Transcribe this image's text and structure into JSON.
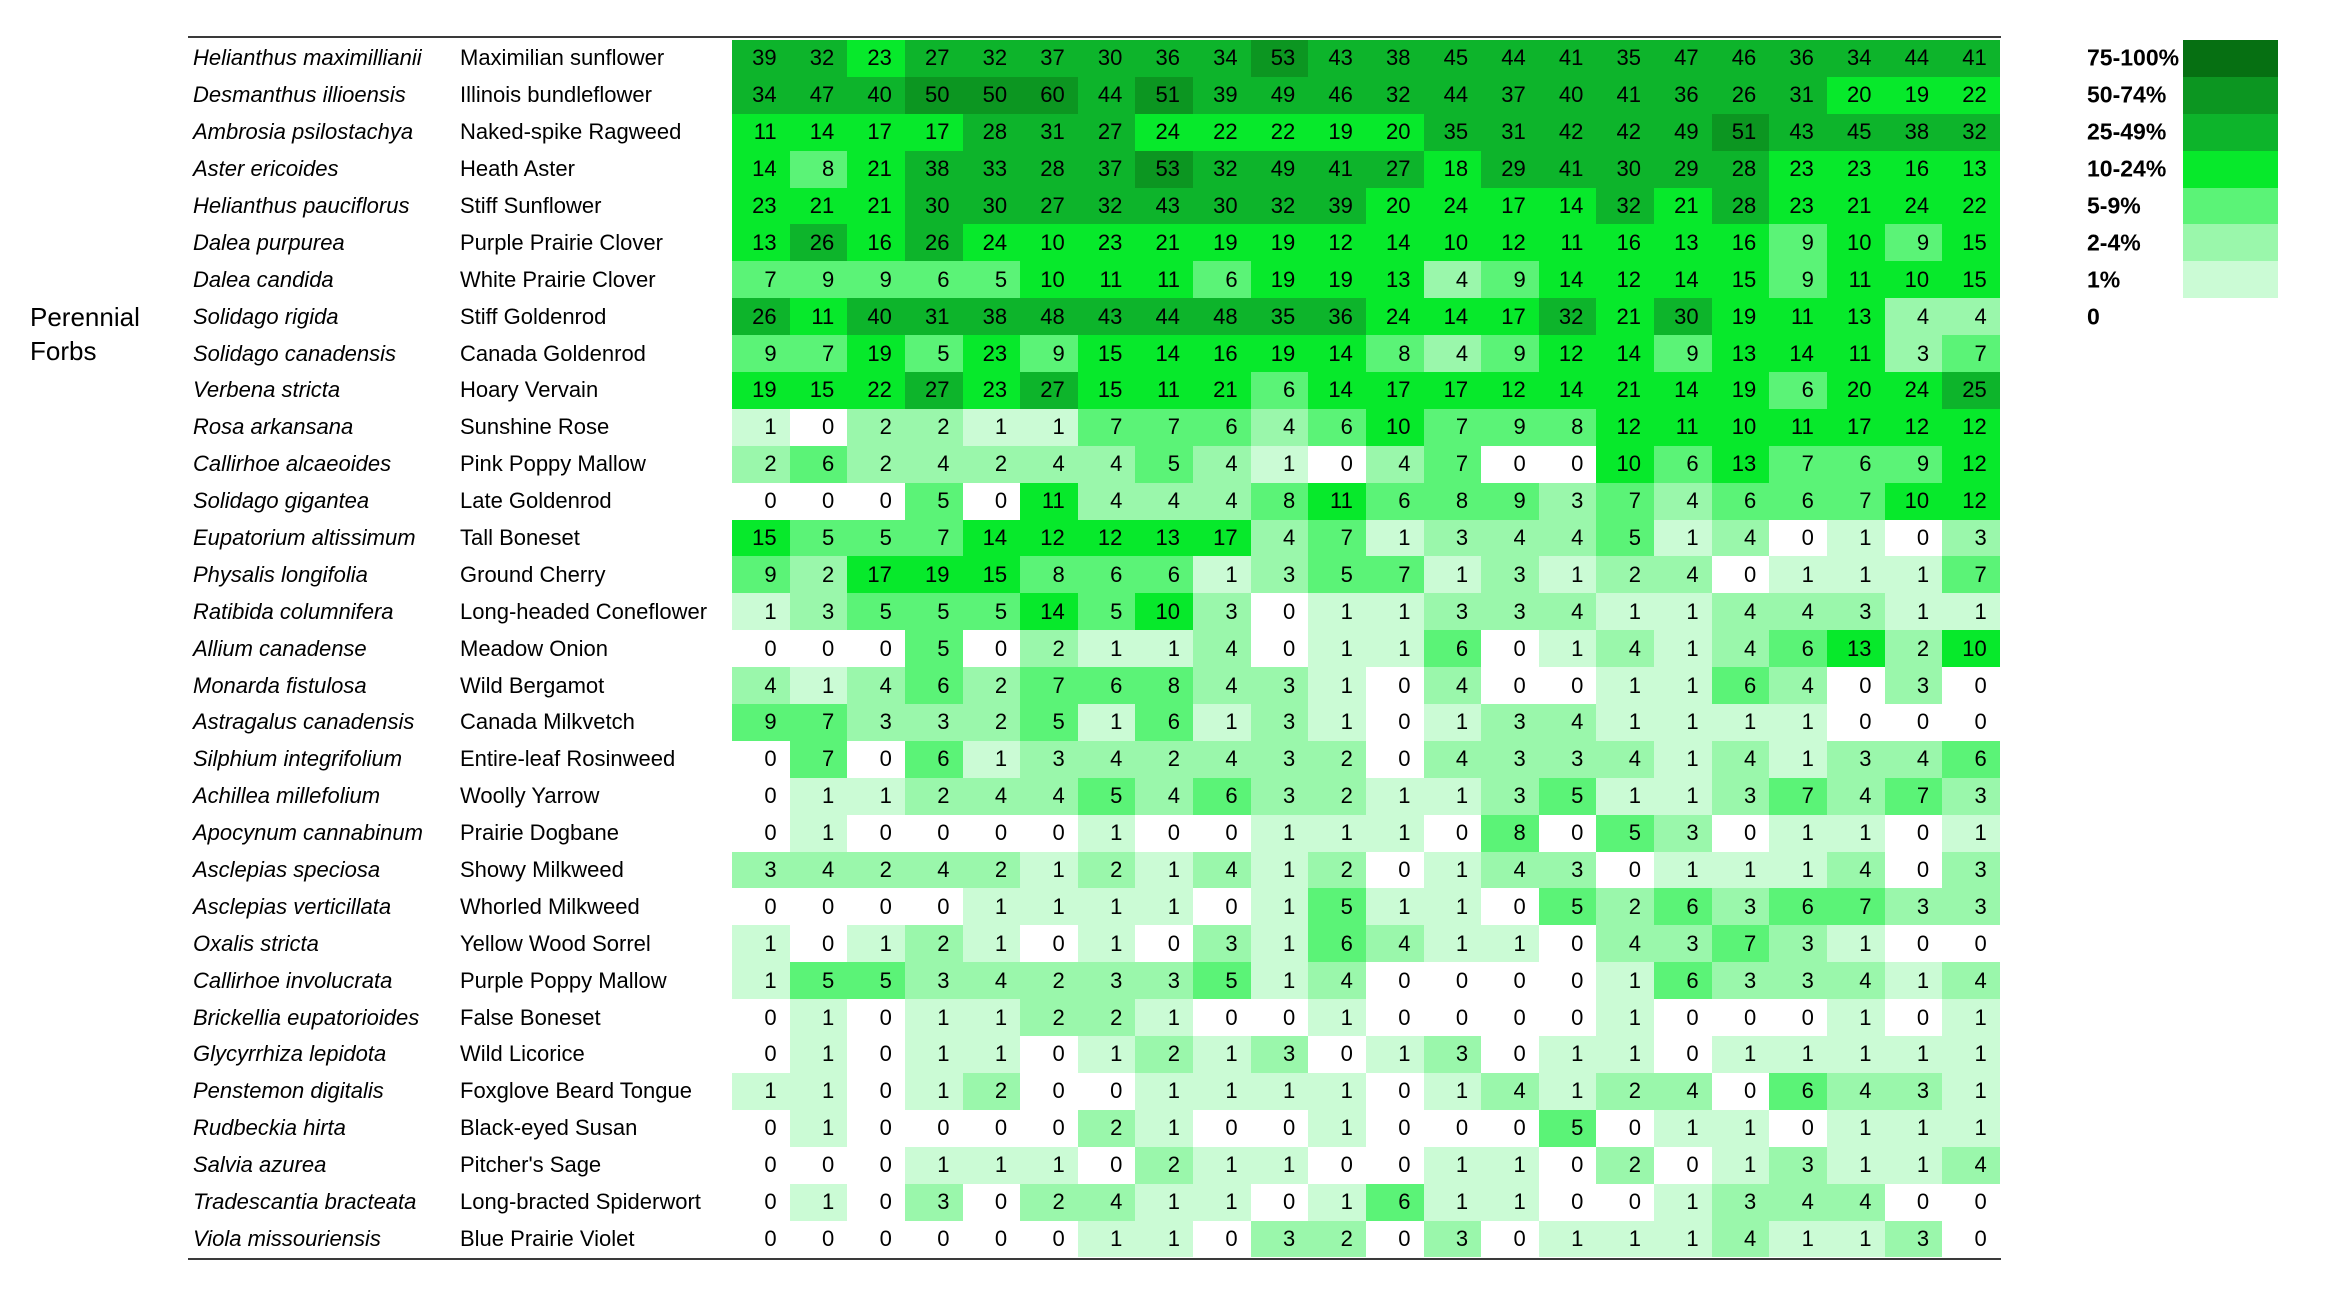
{
  "group_label": {
    "line1": "Perennial",
    "line2": "Forbs"
  },
  "chart_data": {
    "type": "heatmap",
    "group_label": "Perennial Forbs",
    "n_columns": 22,
    "legend_position": "top-right",
    "text_color": "#000000",
    "value_bins": [
      {
        "label": "75-100%",
        "min": 75,
        "color": "#067012"
      },
      {
        "label": "50-74%",
        "min": 50,
        "color": "#0C9621"
      },
      {
        "label": "25-49%",
        "min": 25,
        "color": "#0DB42B"
      },
      {
        "label": "10-24%",
        "min": 10,
        "color": "#07E92B"
      },
      {
        "label": "5-9%",
        "min": 5,
        "color": "#5BF377"
      },
      {
        "label": "2-4%",
        "min": 2,
        "color": "#9AF7AB"
      },
      {
        "label": "1%",
        "min": 1,
        "color": "#CBFBD5"
      },
      {
        "label": "0",
        "min": 0,
        "color": "#FFFFFF"
      }
    ],
    "rows": [
      {
        "scientific": "Helianthus maximillianii",
        "common": "Maximilian sunflower",
        "values": [
          39,
          32,
          23,
          27,
          32,
          37,
          30,
          36,
          34,
          53,
          43,
          38,
          45,
          44,
          41,
          35,
          47,
          46,
          36,
          34,
          44,
          41
        ]
      },
      {
        "scientific": "Desmanthus illioensis",
        "common": "Illinois bundleflower",
        "values": [
          34,
          47,
          40,
          50,
          50,
          60,
          44,
          51,
          39,
          49,
          46,
          32,
          44,
          37,
          40,
          41,
          36,
          26,
          31,
          20,
          19,
          22
        ]
      },
      {
        "scientific": "Ambrosia psilostachya",
        "common": "Naked-spike Ragweed",
        "values": [
          11,
          14,
          17,
          17,
          28,
          31,
          27,
          24,
          22,
          22,
          19,
          20,
          35,
          31,
          42,
          42,
          49,
          51,
          43,
          45,
          38,
          32
        ]
      },
      {
        "scientific": "Aster ericoides",
        "common": "Heath Aster",
        "values": [
          14,
          8,
          21,
          38,
          33,
          28,
          37,
          53,
          32,
          49,
          41,
          27,
          18,
          29,
          41,
          30,
          29,
          28,
          23,
          23,
          16,
          13
        ]
      },
      {
        "scientific": "Helianthus pauciflorus",
        "common": "Stiff Sunflower",
        "values": [
          23,
          21,
          21,
          30,
          30,
          27,
          32,
          43,
          30,
          32,
          39,
          20,
          24,
          17,
          14,
          32,
          21,
          28,
          23,
          21,
          24,
          22
        ]
      },
      {
        "scientific": "Dalea purpurea",
        "common": "Purple Prairie Clover",
        "values": [
          13,
          26,
          16,
          26,
          24,
          10,
          23,
          21,
          19,
          19,
          12,
          14,
          10,
          12,
          11,
          16,
          13,
          16,
          9,
          10,
          9,
          15
        ]
      },
      {
        "scientific": "Dalea candida",
        "common": "White Prairie Clover",
        "values": [
          7,
          9,
          9,
          6,
          5,
          10,
          11,
          11,
          6,
          19,
          19,
          13,
          4,
          9,
          14,
          12,
          14,
          15,
          9,
          11,
          10,
          15
        ]
      },
      {
        "scientific": "Solidago rigida",
        "common": "Stiff Goldenrod",
        "values": [
          26,
          11,
          40,
          31,
          38,
          48,
          43,
          44,
          48,
          35,
          36,
          24,
          14,
          17,
          32,
          21,
          30,
          19,
          11,
          13,
          4,
          4
        ]
      },
      {
        "scientific": "Solidago canadensis",
        "common": "Canada Goldenrod",
        "values": [
          9,
          7,
          19,
          5,
          23,
          9,
          15,
          14,
          16,
          19,
          14,
          8,
          4,
          9,
          12,
          14,
          9,
          13,
          14,
          11,
          3,
          7
        ]
      },
      {
        "scientific": "Verbena stricta",
        "common": "Hoary Vervain",
        "values": [
          19,
          15,
          22,
          27,
          23,
          27,
          15,
          11,
          21,
          6,
          14,
          17,
          17,
          12,
          14,
          21,
          14,
          19,
          6,
          20,
          24,
          25
        ]
      },
      {
        "scientific": "Rosa arkansana",
        "common": "Sunshine Rose",
        "values": [
          1,
          0,
          2,
          2,
          1,
          1,
          7,
          7,
          6,
          4,
          6,
          10,
          7,
          9,
          8,
          12,
          11,
          10,
          11,
          17,
          12,
          12
        ]
      },
      {
        "scientific": "Callirhoe alcaeoides",
        "common": "Pink Poppy Mallow",
        "values": [
          2,
          6,
          2,
          4,
          2,
          4,
          4,
          5,
          4,
          1,
          0,
          4,
          7,
          0,
          0,
          10,
          6,
          13,
          7,
          6,
          9,
          12
        ]
      },
      {
        "scientific": "Solidago gigantea",
        "common": "Late Goldenrod",
        "values": [
          0,
          0,
          0,
          5,
          0,
          11,
          4,
          4,
          4,
          8,
          11,
          6,
          8,
          9,
          3,
          7,
          4,
          6,
          6,
          7,
          10,
          12
        ]
      },
      {
        "scientific": "Eupatorium altissimum",
        "common": "Tall Boneset",
        "values": [
          15,
          5,
          5,
          7,
          14,
          12,
          12,
          13,
          17,
          4,
          7,
          1,
          3,
          4,
          4,
          5,
          1,
          4,
          0,
          1,
          0,
          3
        ]
      },
      {
        "scientific": "Physalis longifolia",
        "common": "Ground Cherry",
        "values": [
          9,
          2,
          17,
          19,
          15,
          8,
          6,
          6,
          1,
          3,
          5,
          7,
          1,
          3,
          1,
          2,
          4,
          0,
          1,
          1,
          1,
          7
        ]
      },
      {
        "scientific": "Ratibida columnifera",
        "common": "Long-headed Coneflower",
        "values": [
          1,
          3,
          5,
          5,
          5,
          14,
          5,
          10,
          3,
          0,
          1,
          1,
          3,
          3,
          4,
          1,
          1,
          4,
          4,
          3,
          1,
          1
        ]
      },
      {
        "scientific": "Allium canadense",
        "common": "Meadow Onion",
        "values": [
          0,
          0,
          0,
          5,
          0,
          2,
          1,
          1,
          4,
          0,
          1,
          1,
          6,
          0,
          1,
          4,
          1,
          4,
          6,
          13,
          2,
          10
        ]
      },
      {
        "scientific": "Monarda fistulosa",
        "common": "Wild Bergamot",
        "values": [
          4,
          1,
          4,
          6,
          2,
          7,
          6,
          8,
          4,
          3,
          1,
          0,
          4,
          0,
          0,
          1,
          1,
          6,
          4,
          0,
          3,
          0
        ]
      },
      {
        "scientific": "Astragalus canadensis",
        "common": "Canada Milkvetch",
        "values": [
          9,
          7,
          3,
          3,
          2,
          5,
          1,
          6,
          1,
          3,
          1,
          0,
          1,
          3,
          4,
          1,
          1,
          1,
          1,
          0,
          0,
          0
        ]
      },
      {
        "scientific": "Silphium integrifolium",
        "common": "Entire-leaf Rosinweed",
        "values": [
          0,
          7,
          0,
          6,
          1,
          3,
          4,
          2,
          4,
          3,
          2,
          0,
          4,
          3,
          3,
          4,
          1,
          4,
          1,
          3,
          4,
          6
        ]
      },
      {
        "scientific": "Achillea millefolium",
        "common": "Woolly Yarrow",
        "values": [
          0,
          1,
          1,
          2,
          4,
          4,
          5,
          4,
          6,
          3,
          2,
          1,
          1,
          3,
          5,
          1,
          1,
          3,
          7,
          4,
          7,
          3
        ]
      },
      {
        "scientific": "Apocynum cannabinum",
        "common": "Prairie Dogbane",
        "values": [
          0,
          1,
          0,
          0,
          0,
          0,
          1,
          0,
          0,
          1,
          1,
          1,
          0,
          8,
          0,
          5,
          3,
          0,
          1,
          1,
          0,
          1
        ]
      },
      {
        "scientific": "Asclepias speciosa",
        "common": "Showy Milkweed",
        "values": [
          3,
          4,
          2,
          4,
          2,
          1,
          2,
          1,
          4,
          1,
          2,
          0,
          1,
          4,
          3,
          0,
          1,
          1,
          1,
          4,
          0,
          3
        ]
      },
      {
        "scientific": "Asclepias verticillata",
        "common": "Whorled Milkweed",
        "values": [
          0,
          0,
          0,
          0,
          1,
          1,
          1,
          1,
          0,
          1,
          5,
          1,
          1,
          0,
          5,
          2,
          6,
          3,
          6,
          7,
          3,
          3
        ]
      },
      {
        "scientific": "Oxalis stricta",
        "common": "Yellow Wood Sorrel",
        "values": [
          1,
          0,
          1,
          2,
          1,
          0,
          1,
          0,
          3,
          1,
          6,
          4,
          1,
          1,
          0,
          4,
          3,
          7,
          3,
          1,
          0,
          0
        ]
      },
      {
        "scientific": "Callirhoe involucrata",
        "common": "Purple Poppy Mallow",
        "values": [
          1,
          5,
          5,
          3,
          4,
          2,
          3,
          3,
          5,
          1,
          4,
          0,
          0,
          0,
          0,
          1,
          6,
          3,
          3,
          4,
          1,
          4
        ]
      },
      {
        "scientific": "Brickellia eupatorioides",
        "common": "False Boneset",
        "values": [
          0,
          1,
          0,
          1,
          1,
          2,
          2,
          1,
          0,
          0,
          1,
          0,
          0,
          0,
          0,
          1,
          0,
          0,
          0,
          1,
          0,
          1
        ]
      },
      {
        "scientific": "Glycyrrhiza lepidota",
        "common": "Wild Licorice",
        "values": [
          0,
          1,
          0,
          1,
          1,
          0,
          1,
          2,
          1,
          3,
          0,
          1,
          3,
          0,
          1,
          1,
          0,
          1,
          1,
          1,
          1,
          1
        ]
      },
      {
        "scientific": "Penstemon digitalis",
        "common": "Foxglove Beard Tongue",
        "values": [
          1,
          1,
          0,
          1,
          2,
          0,
          0,
          1,
          1,
          1,
          1,
          0,
          1,
          4,
          1,
          2,
          4,
          0,
          6,
          4,
          3,
          1
        ]
      },
      {
        "scientific": "Rudbeckia hirta",
        "common": "Black-eyed Susan",
        "values": [
          0,
          1,
          0,
          0,
          0,
          0,
          2,
          1,
          0,
          0,
          1,
          0,
          0,
          0,
          5,
          0,
          1,
          1,
          0,
          1,
          1,
          1
        ]
      },
      {
        "scientific": "Salvia azurea",
        "common": "Pitcher's Sage",
        "values": [
          0,
          0,
          0,
          1,
          1,
          1,
          0,
          2,
          1,
          1,
          0,
          0,
          1,
          1,
          0,
          2,
          0,
          1,
          3,
          1,
          1,
          4
        ]
      },
      {
        "scientific": "Tradescantia bracteata",
        "common": "Long-bracted Spiderwort",
        "values": [
          0,
          1,
          0,
          3,
          0,
          2,
          4,
          1,
          1,
          0,
          1,
          6,
          1,
          1,
          0,
          0,
          1,
          3,
          4,
          4,
          0,
          0
        ]
      },
      {
        "scientific": "Viola missouriensis",
        "common": "Blue Prairie Violet",
        "values": [
          0,
          0,
          0,
          0,
          0,
          0,
          1,
          1,
          0,
          3,
          2,
          0,
          3,
          0,
          1,
          1,
          1,
          4,
          1,
          1,
          3,
          0
        ]
      }
    ]
  }
}
